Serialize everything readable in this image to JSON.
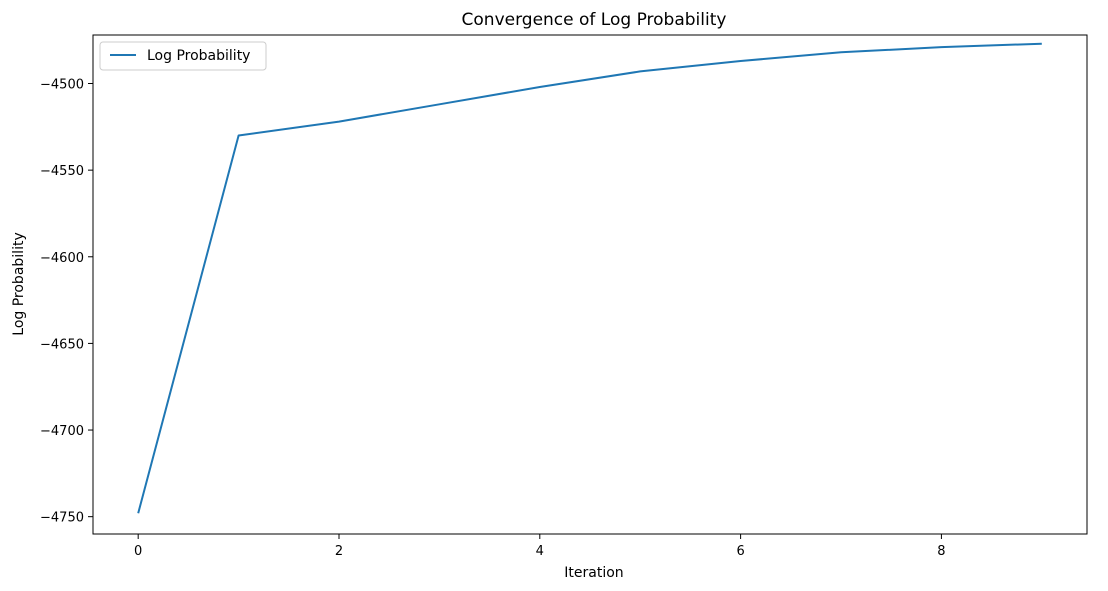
{
  "chart_data": {
    "type": "line",
    "title": "Convergence of Log Probability",
    "xlabel": "Iteration",
    "ylabel": "Log Probability",
    "xlim": [
      -0.45,
      9.45
    ],
    "ylim": [
      -4760,
      -4472
    ],
    "xticks": [
      0,
      2,
      4,
      6,
      8
    ],
    "yticks": [
      -4750,
      -4700,
      -4650,
      -4600,
      -4550,
      -4500
    ],
    "grid": false,
    "legend": {
      "position": "upper left"
    },
    "series": [
      {
        "name": "Log Probability",
        "color": "#1f77b4",
        "x": [
          0,
          1,
          2,
          3,
          4,
          5,
          6,
          7,
          8,
          9
        ],
        "y": [
          -4748,
          -4530,
          -4522,
          -4512,
          -4502,
          -4493,
          -4487,
          -4482,
          -4479,
          -4477
        ]
      }
    ]
  }
}
